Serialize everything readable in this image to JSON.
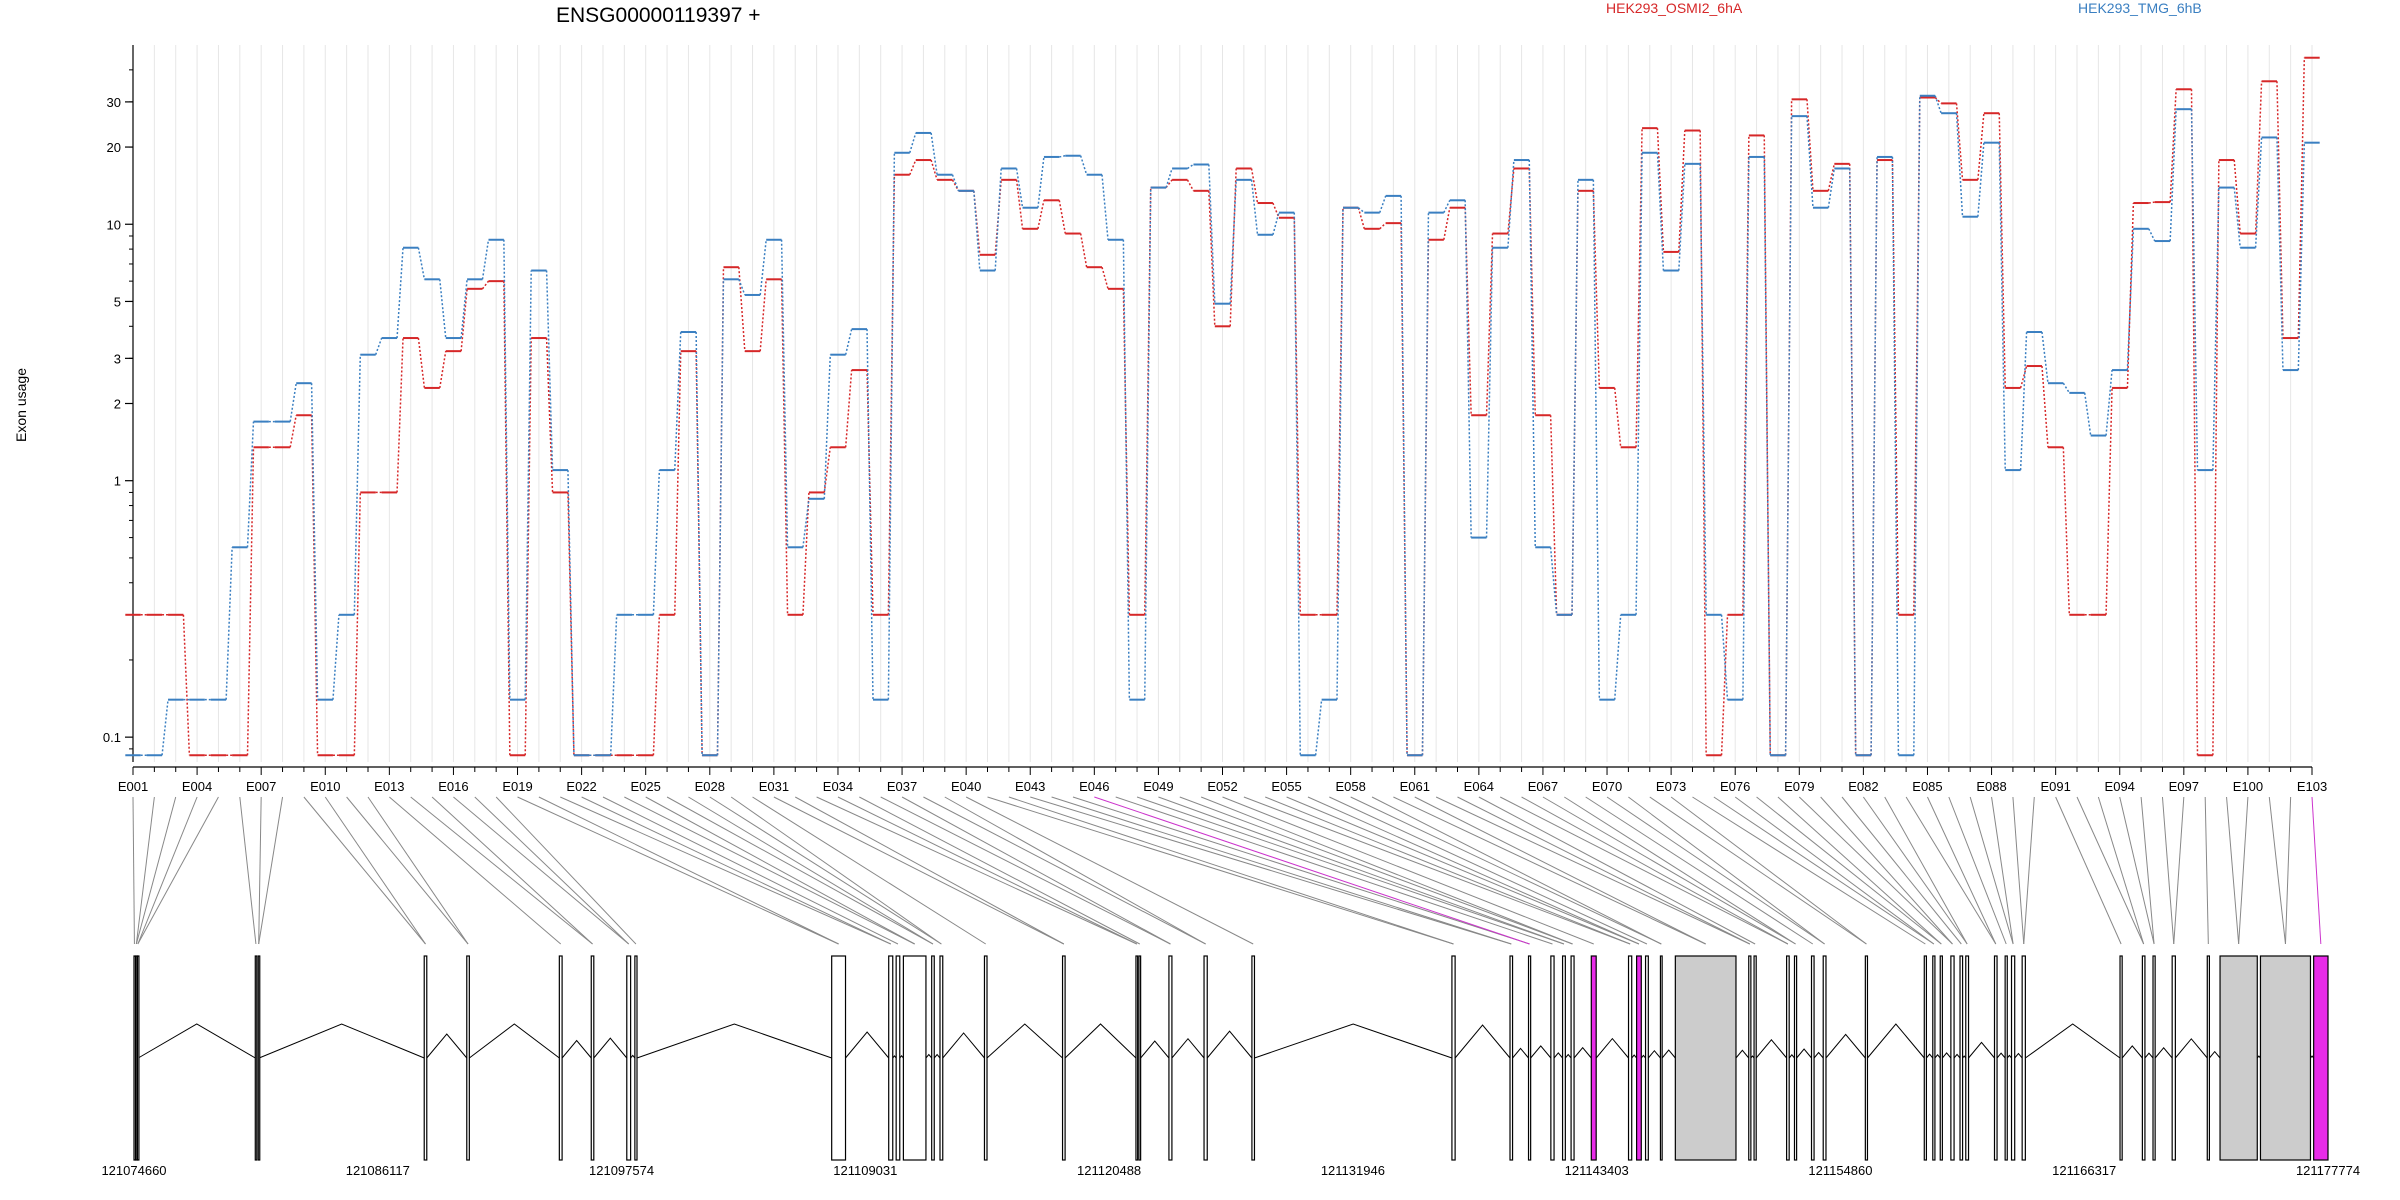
{
  "chart_data": {
    "type": "line",
    "title": "ENSG00000119397 +",
    "ylabel": "Exon usage",
    "xlabel": "",
    "y_scale": "log",
    "ylim": [
      0.08,
      50
    ],
    "y_ticks": [
      {
        "value": 0.1,
        "label": "0.1"
      },
      {
        "value": 1,
        "label": "1"
      },
      {
        "value": 2,
        "label": "2"
      },
      {
        "value": 3,
        "label": "3"
      },
      {
        "value": 5,
        "label": "5"
      },
      {
        "value": 10,
        "label": "10"
      },
      {
        "value": 20,
        "label": "20"
      },
      {
        "value": 30,
        "label": "30"
      }
    ],
    "grid": "vertical",
    "legend": [
      {
        "name": "HEK293_OSMI2_6hA",
        "color": "#d62728"
      },
      {
        "name": "HEK293_TMG_6hB",
        "color": "#3a7fc1"
      }
    ],
    "categories": [
      "E001",
      "E002",
      "E003",
      "E004",
      "E005",
      "E006",
      "E007",
      "E008",
      "E009",
      "E010",
      "E011",
      "E012",
      "E013",
      "E014",
      "E015",
      "E016",
      "E017",
      "E018",
      "E019",
      "E020",
      "E021",
      "E022",
      "E023",
      "E024",
      "E025",
      "E026",
      "E027",
      "E028",
      "E029",
      "E030",
      "E031",
      "E032",
      "E033",
      "E034",
      "E035",
      "E036",
      "E037",
      "E038",
      "E039",
      "E040",
      "E041",
      "E042",
      "E043",
      "E044",
      "E045",
      "E046",
      "E047",
      "E048",
      "E049",
      "E050",
      "E051",
      "E052",
      "E053",
      "E054",
      "E055",
      "E056",
      "E057",
      "E058",
      "E059",
      "E060",
      "E061",
      "E062",
      "E063",
      "E064",
      "E065",
      "E066",
      "E067",
      "E068",
      "E069",
      "E070",
      "E071",
      "E072",
      "E073",
      "E074",
      "E075",
      "E076",
      "E077",
      "E078",
      "E079",
      "E080",
      "E081",
      "E082",
      "E083",
      "E084",
      "E085",
      "E086",
      "E087",
      "E088",
      "E089",
      "E090",
      "E091",
      "E092",
      "E093",
      "E094",
      "E095",
      "E096",
      "E097",
      "E098",
      "E099",
      "E100",
      "E101",
      "E102",
      "E103"
    ],
    "x_tick_labels": [
      "E001",
      "E004",
      "E007",
      "E010",
      "E013",
      "E016",
      "E019",
      "E022",
      "E025",
      "E028",
      "E031",
      "E034",
      "E037",
      "E040",
      "E043",
      "E046",
      "E049",
      "E052",
      "E055",
      "E058",
      "E061",
      "E064",
      "E067",
      "E070",
      "E073",
      "E076",
      "E079",
      "E082",
      "E085",
      "E088",
      "E091",
      "E094",
      "E097",
      "E100",
      "E103"
    ],
    "series": [
      {
        "name": "HEK293_OSMI2_6hA",
        "color": "#d62728",
        "values": [
          0.3,
          0.3,
          0.3,
          0.085,
          0.085,
          0.085,
          1.35,
          1.35,
          1.8,
          0.085,
          0.085,
          0.9,
          0.9,
          3.6,
          2.3,
          3.2,
          5.6,
          6,
          0.085,
          3.6,
          0.9,
          0.085,
          0.085,
          0.085,
          0.085,
          0.3,
          3.2,
          0.085,
          6.8,
          3.2,
          6.1,
          0.3,
          0.9,
          1.35,
          2.7,
          0.3,
          15.6,
          17.8,
          14.9,
          13.5,
          7.6,
          14.9,
          9.6,
          12.4,
          9.2,
          6.8,
          5.6,
          0.3,
          13.9,
          14.9,
          13.5,
          4,
          16.5,
          12.1,
          10.6,
          0.3,
          0.3,
          11.6,
          9.6,
          10.1,
          0.085,
          8.7,
          11.6,
          1.8,
          9.2,
          16.5,
          1.8,
          0.3,
          13.5,
          2.3,
          1.35,
          23.7,
          7.8,
          23.2,
          0.085,
          0.3,
          22.2,
          0.085,
          30.7,
          13.5,
          17.2,
          0.085,
          17.8,
          0.3,
          31.2,
          29.6,
          14.9,
          27.1,
          2.3,
          2.8,
          1.35,
          0.3,
          0.3,
          2.3,
          12.1,
          12.2,
          33.6,
          0.085,
          17.8,
          9.2,
          36.1,
          3.6,
          44.6
        ]
      },
      {
        "name": "HEK293_TMG_6hB",
        "color": "#3a7fc1",
        "values": [
          0.085,
          0.085,
          0.14,
          0.14,
          0.14,
          0.55,
          1.7,
          1.7,
          2.4,
          0.14,
          0.3,
          3.1,
          3.6,
          8.1,
          6.1,
          3.6,
          6.1,
          8.7,
          0.14,
          6.6,
          1.1,
          0.085,
          0.085,
          0.3,
          0.3,
          1.1,
          3.8,
          0.085,
          6.1,
          5.3,
          8.7,
          0.55,
          0.85,
          3.1,
          3.9,
          0.14,
          19,
          22.7,
          15.6,
          13.5,
          6.6,
          16.5,
          11.6,
          18.3,
          18.5,
          15.6,
          8.7,
          0.14,
          13.9,
          16.5,
          17.1,
          4.9,
          14.9,
          9.1,
          11.1,
          0.085,
          0.14,
          11.6,
          11.1,
          12.9,
          0.085,
          11.1,
          12.4,
          0.6,
          8.1,
          17.8,
          0.55,
          0.3,
          14.9,
          0.14,
          0.3,
          19,
          6.6,
          17.2,
          0.3,
          0.14,
          18.3,
          0.085,
          26.4,
          11.6,
          16.5,
          0.085,
          18.3,
          0.085,
          31.7,
          27.1,
          10.7,
          20.8,
          1.1,
          3.8,
          2.4,
          2.2,
          1.5,
          2.7,
          9.6,
          8.6,
          28.1,
          1.1,
          13.9,
          8.1,
          21.8,
          2.7,
          20.8
        ]
      }
    ],
    "exon_connectors": {
      "highlight_color": "#cc33cc",
      "highlighted_exons": [
        "E046",
        "E103"
      ]
    },
    "gene_model": {
      "coordinate_labels": [
        "121074660",
        "121086117",
        "121097574",
        "121109031",
        "121120488",
        "121131946",
        "121143403",
        "121154860",
        "121166317",
        "121177774"
      ],
      "coord_range": [
        121074660,
        121177774
      ],
      "intron_color": "#000000",
      "exon_fill": "#ffffff",
      "retained_fill": "#cccccc",
      "highlight_fill": "#e82be8",
      "exons": [
        {
          "s": 121074660,
          "e": 121074700,
          "f": "n"
        },
        {
          "s": 121074750,
          "e": 121074790,
          "f": "n"
        },
        {
          "s": 121074820,
          "e": 121074860,
          "f": "n"
        },
        {
          "s": 121080360,
          "e": 121080420,
          "f": "n"
        },
        {
          "s": 121080500,
          "e": 121080540,
          "f": "n"
        },
        {
          "s": 121088300,
          "e": 121088420,
          "f": "n"
        },
        {
          "s": 121090300,
          "e": 121090420,
          "f": "n"
        },
        {
          "s": 121094650,
          "e": 121094780,
          "f": "n"
        },
        {
          "s": 121096150,
          "e": 121096270,
          "f": "n"
        },
        {
          "s": 121097820,
          "e": 121098000,
          "f": "n"
        },
        {
          "s": 121098200,
          "e": 121098300,
          "f": "n"
        },
        {
          "s": 121107450,
          "e": 121108100,
          "f": "n"
        },
        {
          "s": 121110130,
          "e": 121110320,
          "f": "n"
        },
        {
          "s": 121110480,
          "e": 121110650,
          "f": "n"
        },
        {
          "s": 121110820,
          "e": 121111880,
          "f": "n"
        },
        {
          "s": 121112150,
          "e": 121112270,
          "f": "n"
        },
        {
          "s": 121112540,
          "e": 121112670,
          "f": "n"
        },
        {
          "s": 121114630,
          "e": 121114750,
          "f": "n"
        },
        {
          "s": 121118300,
          "e": 121118420,
          "f": "n"
        },
        {
          "s": 121121750,
          "e": 121121830,
          "f": "n"
        },
        {
          "s": 121121890,
          "e": 121121970,
          "f": "n"
        },
        {
          "s": 121123300,
          "e": 121123440,
          "f": "n"
        },
        {
          "s": 121124950,
          "e": 121125100,
          "f": "n"
        },
        {
          "s": 121127200,
          "e": 121127320,
          "f": "n"
        },
        {
          "s": 121136600,
          "e": 121136750,
          "f": "n"
        },
        {
          "s": 121139330,
          "e": 121139450,
          "f": "n"
        },
        {
          "s": 121140200,
          "e": 121140300,
          "f": "n"
        },
        {
          "s": 121141250,
          "e": 121141400,
          "f": "n"
        },
        {
          "s": 121141800,
          "e": 121141930,
          "f": "n"
        },
        {
          "s": 121142200,
          "e": 121142340,
          "f": "n"
        },
        {
          "s": 121143150,
          "e": 121143380,
          "f": "h"
        },
        {
          "s": 121144900,
          "e": 121145050,
          "f": "n"
        },
        {
          "s": 121145280,
          "e": 121145500,
          "f": "h"
        },
        {
          "s": 121145700,
          "e": 121145830,
          "f": "n"
        },
        {
          "s": 121146400,
          "e": 121146480,
          "f": "n"
        },
        {
          "s": 121147100,
          "e": 121149950,
          "f": "g"
        },
        {
          "s": 121150550,
          "e": 121150650,
          "f": "n"
        },
        {
          "s": 121150800,
          "e": 121150900,
          "f": "n"
        },
        {
          "s": 121152330,
          "e": 121152450,
          "f": "n"
        },
        {
          "s": 121152700,
          "e": 121152800,
          "f": "n"
        },
        {
          "s": 121153500,
          "e": 121153620,
          "f": "n"
        },
        {
          "s": 121154050,
          "e": 121154180,
          "f": "n"
        },
        {
          "s": 121156030,
          "e": 121156130,
          "f": "n"
        },
        {
          "s": 121158800,
          "e": 121158900,
          "f": "n"
        },
        {
          "s": 121159200,
          "e": 121159300,
          "f": "n"
        },
        {
          "s": 121159550,
          "e": 121159650,
          "f": "n"
        },
        {
          "s": 121160050,
          "e": 121160200,
          "f": "n"
        },
        {
          "s": 121160480,
          "e": 121160600,
          "f": "n"
        },
        {
          "s": 121160750,
          "e": 121160880,
          "f": "n"
        },
        {
          "s": 121162100,
          "e": 121162220,
          "f": "n"
        },
        {
          "s": 121162600,
          "e": 121162700,
          "f": "n"
        },
        {
          "s": 121162900,
          "e": 121163050,
          "f": "n"
        },
        {
          "s": 121163400,
          "e": 121163550,
          "f": "n"
        },
        {
          "s": 121168000,
          "e": 121168100,
          "f": "n"
        },
        {
          "s": 121169050,
          "e": 121169170,
          "f": "n"
        },
        {
          "s": 121169550,
          "e": 121169650,
          "f": "n"
        },
        {
          "s": 121170450,
          "e": 121170600,
          "f": "n"
        },
        {
          "s": 121172100,
          "e": 121172200,
          "f": "n"
        },
        {
          "s": 121172700,
          "e": 121174450,
          "f": "g"
        },
        {
          "s": 121174600,
          "e": 121176950,
          "f": "g"
        },
        {
          "s": 121177100,
          "e": 121177774,
          "f": "h"
        }
      ]
    }
  }
}
